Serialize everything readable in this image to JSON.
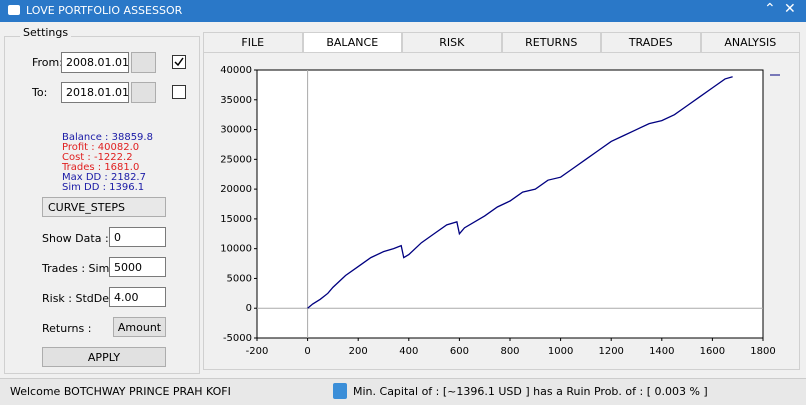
{
  "window": {
    "title": "LOVE PORTFOLIO ASSESSOR"
  },
  "settings": {
    "title": "Settings",
    "from_label": "From:",
    "from_date": "2008.01.01",
    "from_checked": true,
    "to_label": "To:",
    "to_date": "2018.01.01",
    "to_checked": false,
    "stats": [
      {
        "text": "Balance : 38859.8",
        "color": "#1a1aa6"
      },
      {
        "text": "Profit : 40082.0",
        "color": "#e02020"
      },
      {
        "text": "Cost : -1222.2",
        "color": "#e02020"
      },
      {
        "text": "Trades : 1681.0",
        "color": "#e02020"
      },
      {
        "text": "Max DD : 2182.7",
        "color": "#1a1aa6"
      },
      {
        "text": "Sim DD : 1396.1",
        "color": "#1a1aa6"
      }
    ],
    "mode": "CURVE_STEPS",
    "show_data_label": "Show Data :",
    "show_data": "0",
    "trades_label": "Trades : Sim",
    "trades": "5000",
    "risk_label": "Risk : StdDev",
    "risk": "4.00",
    "returns_label": "Returns :",
    "returns": "Amount",
    "apply": "APPLY"
  },
  "tabs": {
    "items": [
      "FILE",
      "BALANCE",
      "RISK",
      "RETURNS",
      "TRADES",
      "ANALYSIS"
    ],
    "active": 1
  },
  "chart_data": {
    "type": "line",
    "x": [
      0,
      20,
      50,
      80,
      100,
      150,
      200,
      250,
      300,
      340,
      370,
      380,
      400,
      450,
      500,
      550,
      590,
      600,
      620,
      700,
      750,
      800,
      850,
      900,
      950,
      1000,
      1050,
      1100,
      1150,
      1200,
      1250,
      1300,
      1350,
      1400,
      1450,
      1500,
      1550,
      1600,
      1650,
      1680
    ],
    "series": [
      {
        "color": "#000080",
        "values": [
          0,
          700,
          1500,
          2500,
          3500,
          5500,
          7000,
          8500,
          9500,
          10000,
          10500,
          8500,
          9000,
          11000,
          12500,
          14000,
          14500,
          12500,
          13500,
          15500,
          17000,
          18000,
          19500,
          20000,
          21500,
          22000,
          23500,
          25000,
          26500,
          28000,
          29000,
          30000,
          31000,
          31500,
          32500,
          34000,
          35500,
          37000,
          38500,
          38860
        ]
      }
    ],
    "xlim": [
      -200,
      1800
    ],
    "xticks": [
      -200,
      0,
      200,
      400,
      600,
      800,
      1000,
      1200,
      1400,
      1600,
      1800
    ],
    "ylim": [
      -5000,
      40000
    ],
    "yticks": [
      -5000,
      0,
      5000,
      10000,
      15000,
      20000,
      25000,
      30000,
      35000,
      40000
    ]
  },
  "status": {
    "welcome": "Welcome BOTCHWAY PRINCE PRAH KOFI",
    "message": "Min. Capital of : [~1396.1 USD ] has a Ruin Prob. of : [ 0.003 % ]"
  }
}
